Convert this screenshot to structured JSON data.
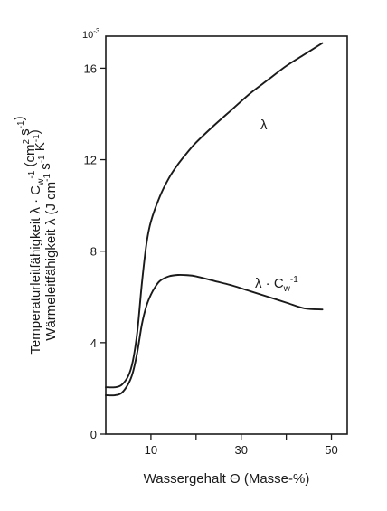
{
  "chart_data": {
    "type": "line",
    "x_ticks": [
      10,
      20,
      30,
      40,
      50
    ],
    "x_tick_labels": [
      "10",
      "",
      "30",
      "",
      "50"
    ],
    "y_ticks": [
      0,
      4,
      8,
      12,
      16
    ],
    "y_tick_labels": [
      "0",
      "4",
      "8",
      "12",
      "16"
    ],
    "y_scale_label": "10-3",
    "xlim": [
      0,
      53.5
    ],
    "ylim": [
      0,
      17.4
    ],
    "xlabel": "Wassergehalt Θ (Masse-%)",
    "ylabel_line1": "Temperaturleitfähigkeit λ · Cw-1 (cm2 s-1)",
    "ylabel_line2": "Wärmeleitfähigkeit λ (J cm-1 s-1 K-1)",
    "grid": false,
    "series": [
      {
        "name": "λ",
        "label_position": "upper-right",
        "x": [
          0,
          2,
          3.5,
          5,
          6,
          7,
          8,
          9,
          10,
          12,
          14,
          16,
          18,
          20,
          24,
          28,
          32,
          36,
          40,
          44,
          48
        ],
        "y": [
          2.05,
          2.05,
          2.15,
          2.55,
          3.2,
          4.5,
          6.6,
          8.3,
          9.3,
          10.4,
          11.2,
          11.8,
          12.3,
          12.75,
          13.5,
          14.2,
          14.9,
          15.5,
          16.1,
          16.6,
          17.1
        ]
      },
      {
        "name": "λ · Cw-1",
        "label_position": "right",
        "x": [
          0,
          2,
          3.5,
          5,
          6,
          7,
          8,
          9,
          10,
          11,
          12,
          14,
          16,
          18,
          20,
          24,
          28,
          32,
          36,
          40,
          44,
          48
        ],
        "y": [
          1.7,
          1.7,
          1.8,
          2.2,
          2.7,
          3.6,
          4.8,
          5.6,
          6.1,
          6.45,
          6.7,
          6.9,
          6.96,
          6.95,
          6.9,
          6.7,
          6.5,
          6.25,
          6.0,
          5.75,
          5.5,
          5.45
        ]
      }
    ]
  }
}
